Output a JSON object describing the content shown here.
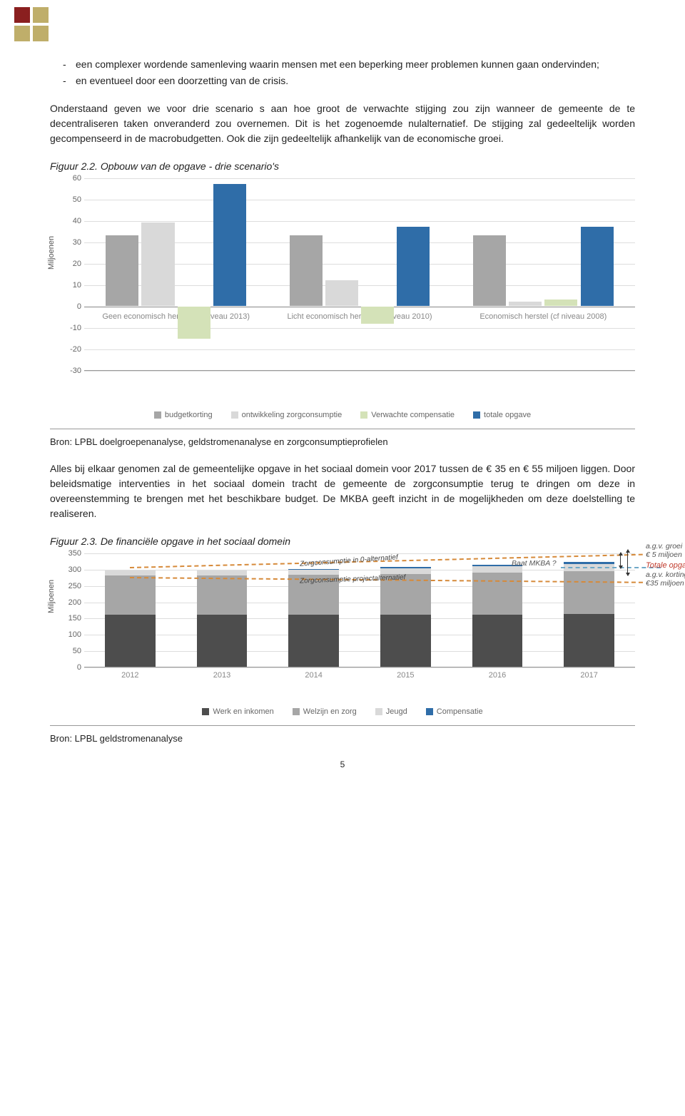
{
  "bullets": [
    "een complexer wordende samenleving waarin mensen met een beperking meer problemen kunnen gaan ondervinden;",
    "en eventueel door een doorzetting van de crisis."
  ],
  "para1": "Onderstaand geven we voor drie scenario s aan hoe groot de verwachte stijging zou zijn wanneer de gemeente de te decentraliseren taken onveranderd zou overnemen. Dit is het zogenoemde nulalternatief. De stijging zal gedeeltelijk worden gecompenseerd in de macrobudgetten. Ook die zijn gedeeltelijk afhankelijk van de economische groei.",
  "fig22_title": "Figuur 2.2. Opbouw van de opgave - drie scenario's",
  "chart1": {
    "ylabel": "Miljoenen",
    "ymin": -30,
    "ymax": 60,
    "ystep": 10,
    "categories": [
      "Geen economisch herstel (cf niveau 2013)",
      "Licht economisch herstel (cf niveau 2010)",
      "Economisch herstel (cf niveau 2008)"
    ],
    "series": [
      {
        "name": "budgetkorting",
        "color": "#a6a6a6",
        "values": [
          33,
          33,
          33
        ]
      },
      {
        "name": "ontwikkeling zorgconsumptie",
        "color": "#d9d9d9",
        "values": [
          39,
          12,
          2
        ]
      },
      {
        "name": "Verwachte compensatie",
        "color": "#d4e2b8",
        "values": [
          -15,
          -8,
          3
        ]
      },
      {
        "name": "totale opgave",
        "color": "#2f6da8",
        "values": [
          57,
          37,
          37
        ]
      }
    ]
  },
  "source1": "Bron: LPBL doelgroepenanalyse, geldstromenanalyse en zorgconsumptieprofielen",
  "para2": "Alles bij elkaar genomen zal de gemeentelijke opgave in het sociaal domein voor 2017 tussen de € 35 en € 55 miljoen liggen. Door beleidsmatige interventies in het sociaal domein tracht de gemeente de zorgconsumptie terug te dringen om deze in overeenstemming te brengen met het beschikbare budget. De MKBA geeft inzicht in de mogelijkheden om deze doelstelling te realiseren.",
  "fig23_title": "Figuur 2.3. De financiële opgave in het sociaal domein",
  "chart2": {
    "ylabel": "Miljoenen",
    "ymin": 0,
    "ymax": 350,
    "ystep": 50,
    "categories": [
      "2012",
      "2013",
      "2014",
      "2015",
      "2016",
      "2017"
    ],
    "series": [
      {
        "name": "Werk en inkomen",
        "color": "#4d4d4d",
        "values": [
          160,
          160,
          160,
          160,
          160,
          163
        ]
      },
      {
        "name": "Welzijn en zorg",
        "color": "#a6a6a6",
        "values": [
          120,
          120,
          122,
          125,
          128,
          130
        ]
      },
      {
        "name": "Jeugd",
        "color": "#d9d9d9",
        "values": [
          15,
          15,
          16,
          18,
          20,
          22
        ]
      },
      {
        "name": "Compensatie",
        "color": "#2f6da8",
        "values": [
          0,
          0,
          1,
          3,
          5,
          7
        ]
      }
    ],
    "annotations": {
      "line1": "Zorgconsumptie in 0-alternatief",
      "line2": "Zorgconsumptie projectalternatief",
      "baat": "Baat MKBA ?",
      "groei": "a.g.v. groei",
      "groei2": "€ 5 miljoen",
      "totale": "Totale opgave",
      "kort": "a.g.v. kortingen",
      "kort2": "€35 miljoen"
    }
  },
  "source2": "Bron: LPBL geldstromenanalyse",
  "page_number": "5"
}
